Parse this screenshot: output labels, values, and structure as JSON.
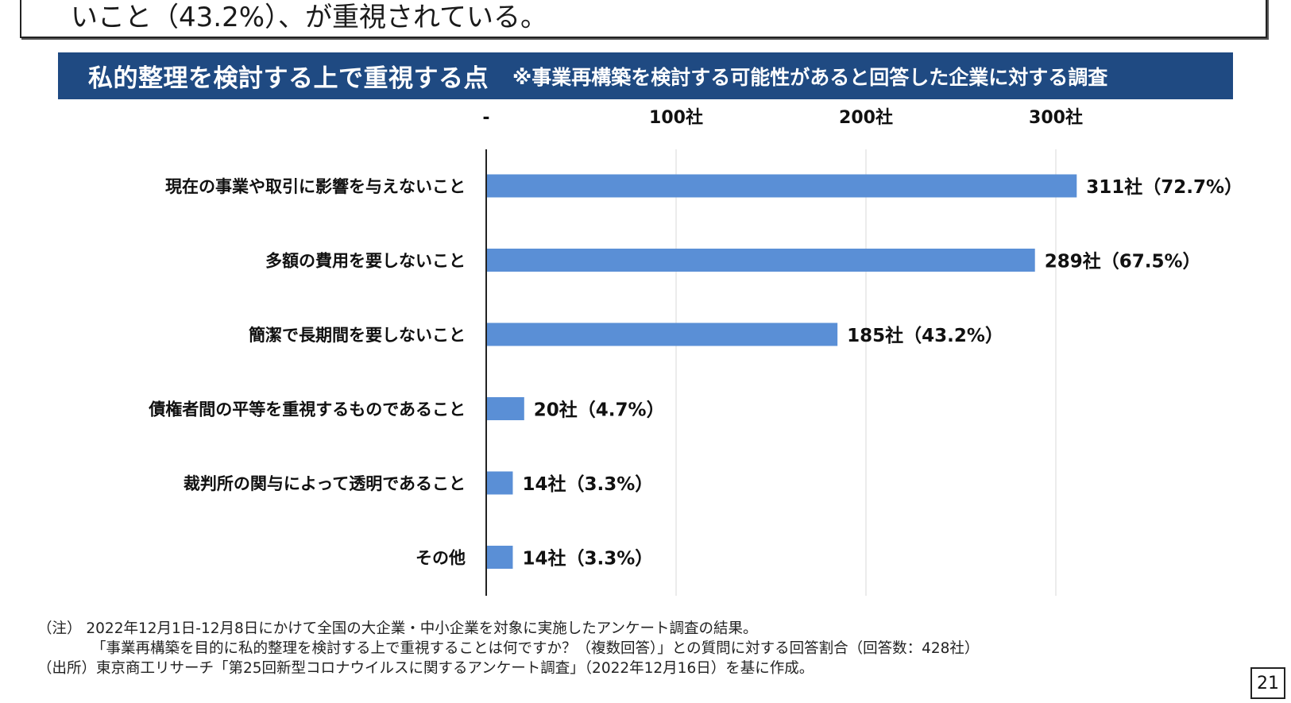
{
  "header": {
    "text": "いこと（43.2%）、が重視されている。"
  },
  "title_bar": {
    "title": "私的整理を検討する上で重視する点",
    "subtitle": "※事業再構築を検討する可能性があると回答した企業に対する調査"
  },
  "chart_data": {
    "type": "bar",
    "orientation": "horizontal",
    "title": "私的整理を検討する上で重視する点",
    "categories": [
      "現在の事業や取引に影響を与えないこと",
      "多額の費用を要しないこと",
      "簡潔で長期間を要しないこと",
      "債権者間の平等を重視するものであること",
      "裁判所の関与によって透明であること",
      "その他"
    ],
    "values": [
      311,
      289,
      185,
      20,
      14,
      14
    ],
    "data_labels": [
      "311社（72.7%）",
      "289社（67.5%）",
      "185社（43.2%）",
      "20社（4.7%）",
      "14社（3.3%）",
      "14社（3.3%）"
    ],
    "x_ticks": [
      0,
      100,
      200,
      300
    ],
    "x_tick_labels": [
      "-",
      "100社",
      "200社",
      "300社"
    ],
    "xlim": [
      0,
      340
    ],
    "grid": true,
    "bar_color": "#5a8fd6",
    "grid_color": "#d9d9d9",
    "axis_color": "#222222"
  },
  "notes": {
    "line1": "（注） 2022年12月1日-12月8日にかけて全国の大企業・中小企業を対象に実施したアンケート調査の結果。",
    "line2": "「事業再構築を目的に私的整理を検討する上で重視することは何ですか？（複数回答）」との質問に対する回答割合（回答数：428社）",
    "line3": "（出所）東京商工リサーチ「第25回新型コロナウイルスに関するアンケート調査」（2022年12月16日）を基に作成。"
  },
  "page_number": "21"
}
